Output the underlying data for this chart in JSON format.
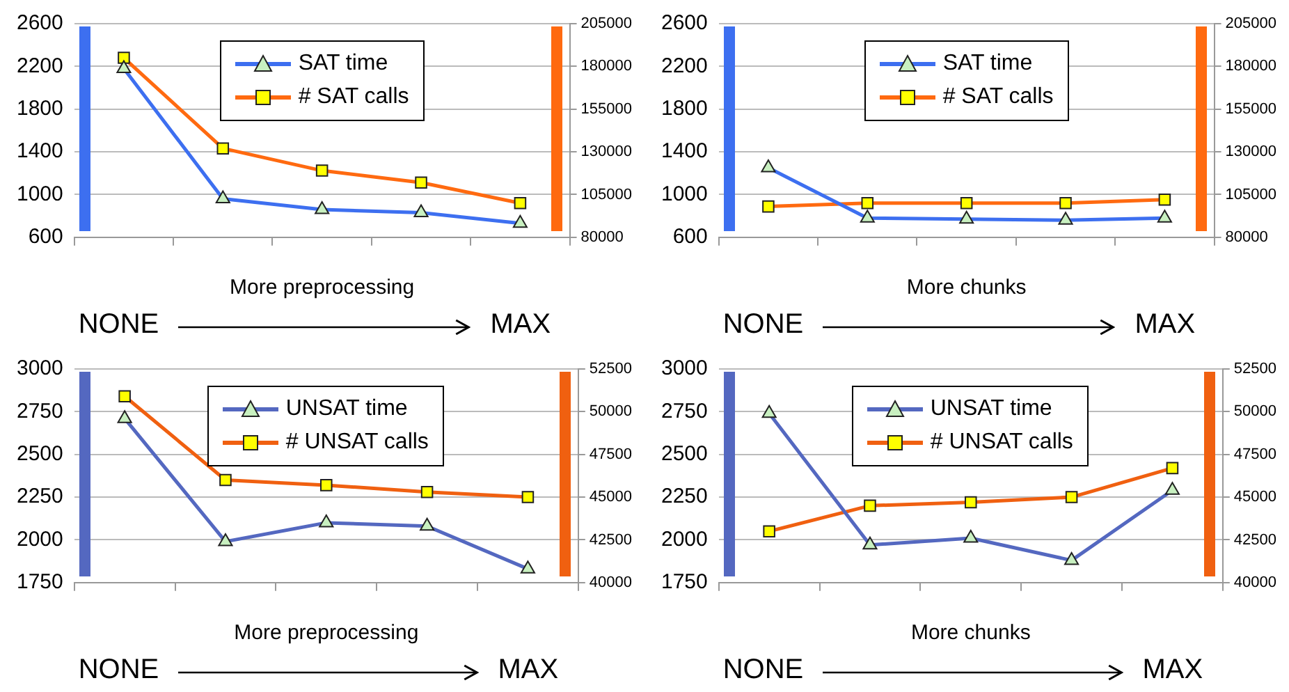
{
  "chart_data": [
    {
      "type": "line",
      "categories": [
        null,
        null,
        null,
        null,
        null
      ],
      "xlabel": "More preprocessing",
      "annotations": [
        "NONE",
        "MAX"
      ],
      "ylim": [
        600,
        2600
      ],
      "yticks": [
        600,
        1000,
        1400,
        1800,
        2200,
        2600
      ],
      "y2lim": [
        80000,
        205000
      ],
      "y2ticks": [
        80000,
        105000,
        130000,
        155000,
        180000,
        205000
      ],
      "grid": "y",
      "legend": "top",
      "series": [
        {
          "name": "SAT time",
          "color": "#3d6ff0",
          "marker": "triangle",
          "values": [
            2180,
            960,
            860,
            830,
            730
          ]
        },
        {
          "name": "# SAT calls",
          "color": "#ff6a10",
          "marker": "square",
          "axis": "y2",
          "values": [
            185000,
            132000,
            119000,
            112000,
            100000
          ]
        }
      ]
    },
    {
      "type": "line",
      "categories": [
        null,
        null,
        null,
        null,
        null
      ],
      "xlabel": "More chunks",
      "annotations": [
        "NONE",
        "MAX"
      ],
      "ylim": [
        600,
        2600
      ],
      "yticks": [
        600,
        1000,
        1400,
        1800,
        2200,
        2600
      ],
      "y2lim": [
        80000,
        205000
      ],
      "y2ticks": [
        80000,
        105000,
        130000,
        155000,
        180000,
        205000
      ],
      "grid": "y",
      "legend": "top",
      "series": [
        {
          "name": "SAT time",
          "color": "#3d6ff0",
          "marker": "triangle",
          "values": [
            1250,
            780,
            770,
            760,
            780
          ]
        },
        {
          "name": "# SAT calls",
          "color": "#ff6a10",
          "marker": "square",
          "axis": "y2",
          "values": [
            98000,
            100000,
            100000,
            100000,
            102000
          ]
        }
      ]
    },
    {
      "type": "line",
      "categories": [
        null,
        null,
        null,
        null,
        null
      ],
      "xlabel": "More preprocessing",
      "annotations": [
        "NONE",
        "MAX"
      ],
      "ylim": [
        1750,
        3000
      ],
      "yticks": [
        1750,
        2000,
        2250,
        2500,
        2750,
        3000
      ],
      "y2lim": [
        40000,
        52500
      ],
      "y2ticks": [
        40000,
        42500,
        45000,
        47500,
        50000,
        52500
      ],
      "grid": "y",
      "legend": "top",
      "series": [
        {
          "name": "UNSAT time",
          "color": "#5468c0",
          "marker": "triangle",
          "values": [
            2710,
            1990,
            2100,
            2080,
            1830
          ]
        },
        {
          "name": "# UNSAT calls",
          "color": "#f06010",
          "marker": "square",
          "axis": "y2",
          "values": [
            50900,
            46000,
            45700,
            45300,
            45000
          ]
        }
      ]
    },
    {
      "type": "line",
      "categories": [
        null,
        null,
        null,
        null,
        null
      ],
      "xlabel": "More chunks",
      "annotations": [
        "NONE",
        "MAX"
      ],
      "ylim": [
        1750,
        3000
      ],
      "yticks": [
        1750,
        2000,
        2250,
        2500,
        2750,
        3000
      ],
      "y2lim": [
        40000,
        52500
      ],
      "y2ticks": [
        40000,
        42500,
        45000,
        47500,
        50000,
        52500
      ],
      "grid": "y",
      "legend": "top",
      "series": [
        {
          "name": "UNSAT time",
          "color": "#5468c0",
          "marker": "triangle",
          "values": [
            2740,
            1970,
            2010,
            1880,
            2290
          ]
        },
        {
          "name": "# UNSAT calls",
          "color": "#f06010",
          "marker": "square",
          "axis": "y2",
          "values": [
            43000,
            44500,
            44700,
            45000,
            46700
          ]
        }
      ]
    }
  ]
}
